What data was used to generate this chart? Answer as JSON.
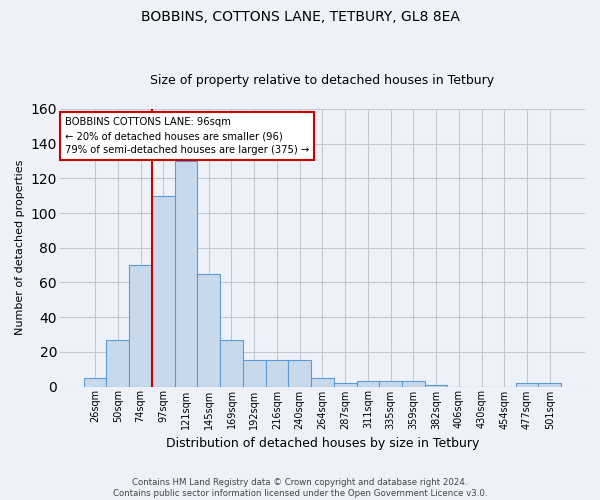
{
  "title1": "BOBBINS, COTTONS LANE, TETBURY, GL8 8EA",
  "title2": "Size of property relative to detached houses in Tetbury",
  "xlabel": "Distribution of detached houses by size in Tetbury",
  "ylabel": "Number of detached properties",
  "bar_labels": [
    "26sqm",
    "50sqm",
    "74sqm",
    "97sqm",
    "121sqm",
    "145sqm",
    "169sqm",
    "192sqm",
    "216sqm",
    "240sqm",
    "264sqm",
    "287sqm",
    "311sqm",
    "335sqm",
    "359sqm",
    "382sqm",
    "406sqm",
    "430sqm",
    "454sqm",
    "477sqm",
    "501sqm"
  ],
  "bar_values": [
    5,
    27,
    70,
    110,
    130,
    65,
    27,
    15,
    15,
    15,
    5,
    2,
    3,
    3,
    3,
    1,
    0,
    0,
    0,
    2,
    2
  ],
  "bar_color": "#c9d9ec",
  "bar_edge_color": "#5b9bd5",
  "grid_color": "#c0c8d8",
  "background_color": "#eef2f8",
  "property_line_color": "#cc0000",
  "annotation_line1": "BOBBINS COTTONS LANE: 96sqm",
  "annotation_line2": "← 20% of detached houses are smaller (96)",
  "annotation_line3": "79% of semi-detached houses are larger (375) →",
  "annotation_box_color": "#ffffff",
  "annotation_box_edge_color": "#cc0000",
  "footer_text": "Contains HM Land Registry data © Crown copyright and database right 2024.\nContains public sector information licensed under the Open Government Licence v3.0.",
  "ylim": [
    0,
    160
  ],
  "yticks": [
    0,
    20,
    40,
    60,
    80,
    100,
    120,
    140,
    160
  ],
  "fig_width": 6.0,
  "fig_height": 5.0,
  "dpi": 100
}
